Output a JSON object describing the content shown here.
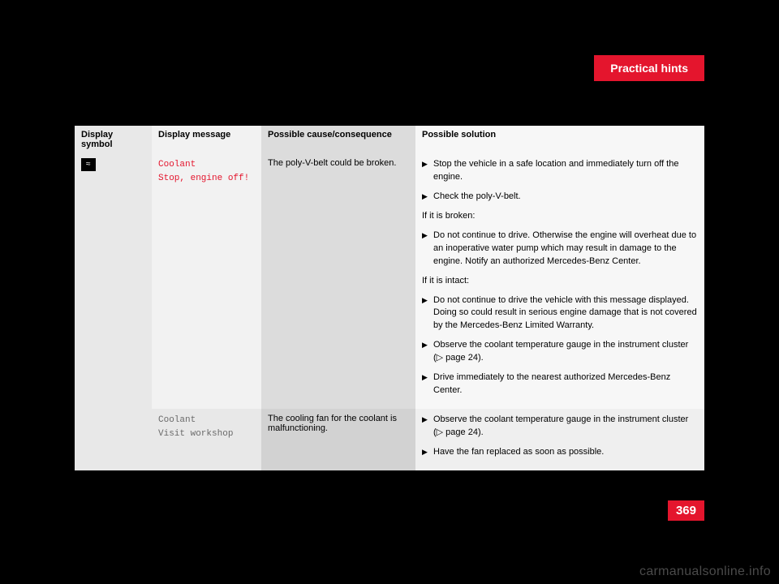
{
  "header": {
    "title": "Practical hints"
  },
  "page_number": "369",
  "watermark": "carmanualsonline.info",
  "table": {
    "headers": [
      "Display symbol",
      "Display message",
      "Possible cause/consequence",
      "Possible solution"
    ],
    "rows": [
      {
        "symbol_glyph": "≈",
        "message_lines": [
          "Coolant",
          "Stop, engine off!"
        ],
        "message_class": "msg-red",
        "cause": "The poly-V-belt could be broken.",
        "solution": {
          "blocks": [
            {
              "type": "bullet",
              "text": "Stop the vehicle in a safe location and immediately turn off the engine."
            },
            {
              "type": "bullet",
              "text": "Check the poly-V-belt."
            },
            {
              "type": "text",
              "text": "If it is broken:"
            },
            {
              "type": "bullet",
              "text": "Do not continue to drive. Otherwise the engine will overheat due to an inoperative water pump which may result in damage to the engine. Notify an authorized Mercedes-Benz Center."
            },
            {
              "type": "text",
              "text": "If it is intact:"
            },
            {
              "type": "bullet",
              "text": "Do not continue to drive the vehicle with this message displayed. Doing so could result in serious engine damage that is not covered by the Mercedes-Benz Limited Warranty."
            },
            {
              "type": "bullet",
              "text": "Observe the coolant temperature gauge in the instrument cluster (▷ page 24)."
            },
            {
              "type": "bullet",
              "text": "Drive immediately to the nearest authorized Mercedes-Benz Center."
            }
          ]
        }
      },
      {
        "message_lines": [
          "Coolant",
          "Visit workshop"
        ],
        "message_class": "msg-gray",
        "cause": "The cooling fan for the coolant is malfunctioning.",
        "solution": {
          "blocks": [
            {
              "type": "bullet",
              "text": "Observe the coolant temperature gauge in the instrument cluster (▷ page 24)."
            },
            {
              "type": "bullet",
              "text": "Have the fan replaced as soon as possible."
            }
          ]
        }
      }
    ]
  }
}
